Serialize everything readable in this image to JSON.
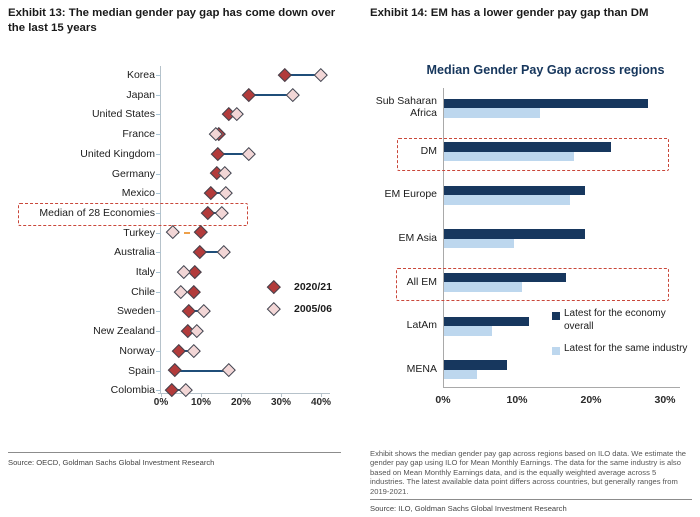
{
  "left": {
    "title": "Exhibit 13: The median gender pay gap has come down over the last 15 years",
    "source": "Source: OECD, Goldman Sachs Global Investment Research"
  },
  "right": {
    "title": "Exhibit 14: EM has a lower gender pay gap than DM",
    "chart_title": "Median Gender Pay Gap across regions",
    "footnote": "Exhibit shows the median gender pay gap across regions based on ILO data. We estimate the gender pay gap using ILO for Mean Monthly Earnings. The data for the same industry is also based on Mean Monthly Earnings data, and is the equally weighted average across 5 industries. The latest available data point differs across countries, but generally ranges from 2019-2021.",
    "source": "Source: ILO, Goldman Sachs Global Investment Research"
  },
  "colors": {
    "dark_red": "#b23b3b",
    "light_pink": "#f2d6d6",
    "diamond_outline": "#3f4450",
    "navy_line": "#1f4e79",
    "orange_dashed": "#eda04a",
    "bar_dark": "#17375e",
    "bar_light": "#bdd7ee",
    "dashed_red": "#c9473a"
  },
  "chart_data": [
    {
      "type": "scatter",
      "subtype": "dumbbell",
      "title": "Exhibit 13: The median gender pay gap has come down over the last 15 years",
      "categories": [
        "Korea",
        "Japan",
        "United States",
        "France",
        "United Kingdom",
        "Germany",
        "Mexico",
        "Median of 28 Economies",
        "Turkey",
        "Australia",
        "Italy",
        "Chile",
        "Sweden",
        "New Zealand",
        "Norway",
        "Spain",
        "Colombia"
      ],
      "series": [
        {
          "name": "2020/21",
          "values": [
            31,
            22,
            17,
            14.5,
            14.4,
            14,
            12.5,
            11.7,
            10,
            9.8,
            8.5,
            8.2,
            7.1,
            6.8,
            4.6,
            3.5,
            2.9
          ]
        },
        {
          "name": "2005/06",
          "values": [
            40,
            33,
            19,
            13.8,
            22,
            16,
            16.3,
            15.3,
            3,
            15.8,
            5.8,
            5,
            10.9,
            9.1,
            8.4,
            17,
            6.4
          ]
        }
      ],
      "gap_increased_categories": [
        "Turkey",
        "Italy",
        "Chile"
      ],
      "highlighted_categories": [
        "Median of 28 Economies"
      ],
      "xlabel": "",
      "ylabel": "",
      "xlim": [
        0,
        40
      ],
      "x_ticks": [
        "0%",
        "10%",
        "20%",
        "30%",
        "40%"
      ],
      "legend_position": "center-right",
      "grid": false
    },
    {
      "type": "bar",
      "subtype": "horizontal-grouped",
      "title": "Median Gender Pay Gap across regions",
      "categories": [
        "Sub Saharan Africa",
        "DM",
        "EM Europe",
        "EM Asia",
        "All EM",
        "LatAm",
        "MENA"
      ],
      "series": [
        {
          "name": "Latest for the economy overall",
          "values": [
            27.5,
            22.5,
            19,
            19,
            16.5,
            11.5,
            8.5
          ]
        },
        {
          "name": "Latest for the same industry",
          "values": [
            13,
            17.5,
            17,
            9.5,
            10.5,
            6.5,
            4.5
          ]
        }
      ],
      "highlighted_categories": [
        "DM",
        "All EM"
      ],
      "xlabel": "",
      "ylabel": "",
      "xlim": [
        0,
        30
      ],
      "x_ticks": [
        "0%",
        "10%",
        "20%",
        "30%"
      ],
      "legend_position": "right-middle",
      "grid": false
    }
  ]
}
